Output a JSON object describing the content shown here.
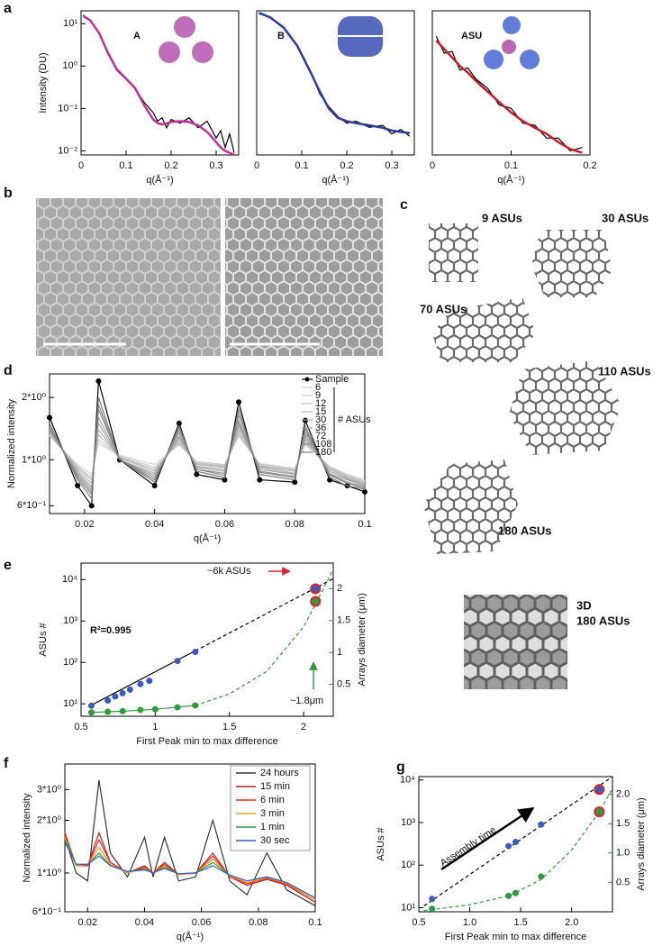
{
  "panels": [
    "a",
    "b",
    "c",
    "d",
    "e",
    "f",
    "g"
  ],
  "structures": [
    "9 ASUs",
    "30 ASUs",
    "70 ASUs",
    "110 ASUs",
    "180 ASUs"
  ],
  "structure_3d": [
    "3D",
    "180 ASUs"
  ],
  "chart_data": [
    {
      "type": "line",
      "title": "A",
      "title_color": "#7b2d8e",
      "xlabel": "q(Å⁻¹)",
      "ylabel": "Intensity (DU)",
      "xlim": [
        0,
        0.35
      ],
      "xticks": [
        0,
        0.1,
        0.2,
        0.3
      ],
      "ylim": [
        0.008,
        20
      ],
      "yscale": "log",
      "yticks": [
        {
          "value": 0.01,
          "label": "10⁻²"
        },
        {
          "value": 0.1,
          "label": "10⁻¹"
        },
        {
          "value": 1,
          "label": "10⁰"
        },
        {
          "value": 10,
          "label": "10¹"
        }
      ],
      "x": [
        0.005,
        0.02,
        0.04,
        0.06,
        0.08,
        0.1,
        0.12,
        0.14,
        0.16,
        0.17,
        0.18,
        0.19,
        0.2,
        0.22,
        0.24,
        0.26,
        0.28,
        0.3,
        0.31,
        0.32,
        0.33,
        0.34
      ],
      "series": [
        {
          "color": "#000000",
          "values": [
            16,
            11.5,
            6.2,
            1.9,
            0.85,
            0.52,
            0.29,
            0.14,
            0.08,
            0.05,
            0.06,
            0.035,
            0.055,
            0.045,
            0.06,
            0.035,
            0.05,
            0.02,
            0.03,
            0.012,
            0.025,
            0.009
          ]
        },
        {
          "color": "#c0309a",
          "width": 2.5,
          "values": [
            15,
            12,
            6,
            2,
            0.8,
            0.5,
            0.3,
            0.12,
            0.055,
            0.045,
            0.042,
            0.044,
            0.048,
            0.05,
            0.048,
            0.04,
            0.028,
            0.016,
            0.012,
            0.01,
            0.009,
            0.008
          ]
        }
      ]
    },
    {
      "type": "line",
      "title": "B",
      "title_color": "#2a3d9c",
      "xlabel": "q(Å⁻¹)",
      "xlim": [
        0,
        0.35
      ],
      "xticks": [
        0,
        0.1,
        0.2,
        0.3
      ],
      "ylim": [
        0.008,
        20
      ],
      "yscale": "log",
      "x": [
        0.005,
        0.03,
        0.06,
        0.09,
        0.12,
        0.14,
        0.16,
        0.18,
        0.2,
        0.22,
        0.25,
        0.28,
        0.3,
        0.32,
        0.34
      ],
      "series": [
        {
          "color": "#000000",
          "values": [
            17,
            14.5,
            7.8,
            3.1,
            0.72,
            0.22,
            0.11,
            0.065,
            0.045,
            0.05,
            0.036,
            0.04,
            0.025,
            0.032,
            0.022
          ]
        },
        {
          "color": "#2a3d9c",
          "width": 2.5,
          "values": [
            18,
            14,
            8,
            3,
            0.7,
            0.25,
            0.1,
            0.06,
            0.05,
            0.045,
            0.04,
            0.035,
            0.03,
            0.028,
            0.026
          ]
        }
      ]
    },
    {
      "type": "line",
      "title": "ASU",
      "title_color": "#c0202a",
      "xlabel": "q(Å⁻¹)",
      "xlim": [
        0,
        0.2
      ],
      "xticks": [
        0,
        0.1,
        0.2
      ],
      "ylim": [
        0.008,
        20
      ],
      "yscale": "log",
      "x": [
        0.005,
        0.015,
        0.025,
        0.035,
        0.045,
        0.055,
        0.07,
        0.085,
        0.1,
        0.115,
        0.13,
        0.145,
        0.16,
        0.175,
        0.19
      ],
      "series": [
        {
          "color": "#000000",
          "values": [
            5,
            2,
            2.2,
            0.8,
            0.9,
            0.5,
            0.3,
            0.12,
            0.1,
            0.045,
            0.04,
            0.02,
            0.02,
            0.01,
            0.012
          ]
        },
        {
          "color": "#c0202a",
          "width": 2.5,
          "values": [
            4,
            2.5,
            1.6,
            1.0,
            0.7,
            0.45,
            0.25,
            0.14,
            0.08,
            0.05,
            0.035,
            0.025,
            0.016,
            0.011,
            0.009
          ]
        }
      ]
    },
    {
      "type": "line",
      "xlabel": "q(Å⁻¹)",
      "ylabel": "Normalized intensity",
      "xlim": [
        0.01,
        0.1
      ],
      "xticks": [
        0.02,
        0.04,
        0.06,
        0.08,
        0.1
      ],
      "ylim": [
        0.55,
        2.6
      ],
      "yscale": "log",
      "yticks": [
        {
          "value": 0.6,
          "label": "6*10⁻¹"
        },
        {
          "value": 1,
          "label": "1*10⁰"
        },
        {
          "value": 2,
          "label": "2*10⁰"
        }
      ],
      "legend": "upper right",
      "legend_title": "# ASUs",
      "x": [
        0.01,
        0.018,
        0.022,
        0.024,
        0.03,
        0.04,
        0.047,
        0.052,
        0.06,
        0.064,
        0.07,
        0.08,
        0.083,
        0.09,
        0.095,
        0.1
      ],
      "series": [
        {
          "name": "Sample",
          "color": "#000000",
          "markers": true,
          "values": [
            1.6,
            0.75,
            0.6,
            2.4,
            1.0,
            0.75,
            1.5,
            0.85,
            0.8,
            1.9,
            0.8,
            0.78,
            1.55,
            0.8,
            0.75,
            0.7
          ]
        },
        {
          "name": "6",
          "color": "#d4d4d4",
          "values": [
            1.3,
            0.95,
            0.85,
            1.2,
            1.05,
            0.95,
            1.18,
            0.98,
            0.95,
            1.3,
            0.96,
            0.91,
            1.18,
            0.93,
            0.85,
            0.8
          ]
        },
        {
          "name": "9",
          "color": "#cacaca",
          "values": [
            1.31,
            0.93,
            0.82,
            1.25,
            1.04,
            0.92,
            1.2,
            0.97,
            0.94,
            1.32,
            0.95,
            0.9,
            1.2,
            0.92,
            0.84,
            0.79
          ]
        },
        {
          "name": "12",
          "color": "#c0c0c0",
          "values": [
            1.33,
            0.92,
            0.8,
            1.32,
            1.03,
            0.9,
            1.22,
            0.96,
            0.93,
            1.35,
            0.94,
            0.89,
            1.22,
            0.91,
            0.83,
            0.78
          ]
        },
        {
          "name": "15",
          "color": "#b5b5b5",
          "values": [
            1.35,
            0.9,
            0.77,
            1.4,
            1.02,
            0.88,
            1.25,
            0.95,
            0.92,
            1.4,
            0.93,
            0.88,
            1.25,
            0.9,
            0.82,
            0.77
          ]
        },
        {
          "name": "30",
          "color": "#aaaaaa",
          "values": [
            1.38,
            0.88,
            0.74,
            1.5,
            1.0,
            0.86,
            1.28,
            0.93,
            0.9,
            1.45,
            0.92,
            0.86,
            1.28,
            0.88,
            0.81,
            0.76
          ]
        },
        {
          "name": "36",
          "color": "#9f9f9f",
          "values": [
            1.4,
            0.86,
            0.72,
            1.6,
            1.0,
            0.84,
            1.3,
            0.92,
            0.88,
            1.5,
            0.9,
            0.85,
            1.3,
            0.86,
            0.8,
            0.75
          ]
        },
        {
          "name": "72",
          "color": "#939393",
          "values": [
            1.42,
            0.84,
            0.7,
            1.75,
            1.0,
            0.82,
            1.35,
            0.9,
            0.86,
            1.55,
            0.88,
            0.83,
            1.35,
            0.85,
            0.78,
            0.74
          ]
        },
        {
          "name": "108",
          "color": "#888888",
          "values": [
            1.45,
            0.82,
            0.68,
            1.85,
            1.0,
            0.8,
            1.4,
            0.9,
            0.84,
            1.65,
            0.87,
            0.82,
            1.4,
            0.84,
            0.77,
            0.73
          ]
        },
        {
          "name": "180",
          "color": "#7c7c7c",
          "values": [
            1.5,
            0.8,
            0.65,
            2.0,
            1.0,
            0.78,
            1.45,
            0.88,
            0.82,
            1.75,
            0.85,
            0.8,
            1.45,
            0.82,
            0.75,
            0.72
          ]
        }
      ]
    },
    {
      "type": "scatter",
      "xlabel": "First Peak min to max difference",
      "ylabel": "ASUs #",
      "y2label": "Arrays diameter (μm)",
      "y2color": "#2e9a3a",
      "xlim": [
        0.5,
        2.2
      ],
      "xticks": [
        0.5,
        1,
        1.5,
        2
      ],
      "ylim": [
        5,
        25000
      ],
      "yscale": "log",
      "yticks": [
        {
          "value": 10,
          "label": "10¹"
        },
        {
          "value": 100,
          "label": "10²"
        },
        {
          "value": 1000,
          "label": "10³"
        },
        {
          "value": 10000,
          "label": "10⁴"
        }
      ],
      "y2lim": [
        0,
        2.4
      ],
      "y2ticks": [
        0.5,
        1,
        1.5,
        2
      ],
      "series": [
        {
          "kind": "line",
          "color": "#000000",
          "x": [
            0.55,
            1.27
          ],
          "values": [
            8.5,
            190
          ]
        },
        {
          "kind": "line",
          "dash": true,
          "color": "#000000",
          "x": [
            1.27,
            2.2
          ],
          "values": [
            190,
            10500
          ]
        },
        {
          "kind": "line",
          "axis": "y2",
          "color": "#2e9a3a",
          "x": [
            0.55,
            0.8,
            1.0,
            1.27
          ],
          "values": [
            0.06,
            0.08,
            0.11,
            0.17
          ]
        },
        {
          "kind": "line",
          "axis": "y2",
          "dash": true,
          "color": "#2e9a3a",
          "x": [
            1.27,
            1.5,
            1.75,
            2.0,
            2.2
          ],
          "values": [
            0.17,
            0.35,
            0.7,
            1.4,
            2.3
          ]
        },
        {
          "color": "#3a5bbf",
          "x": [
            0.57,
            0.68,
            0.73,
            0.78,
            0.83,
            0.9,
            0.96,
            1.15,
            1.27
          ],
          "values": [
            9,
            12,
            15,
            18,
            22,
            30,
            36,
            108,
            180
          ]
        },
        {
          "axis": "y2",
          "color": "#2e9a3a",
          "x": [
            0.57,
            0.68,
            0.78,
            0.9,
            1.0,
            1.15,
            1.27
          ],
          "values": [
            0.06,
            0.07,
            0.08,
            0.1,
            0.11,
            0.14,
            0.17
          ]
        },
        {
          "color": "#3a5bbf",
          "edgecolor": "#e0202a",
          "x": [
            2.08
          ],
          "values": [
            6000
          ]
        },
        {
          "axis": "y2",
          "color": "#2e9a3a",
          "edgecolor": "#e0202a",
          "x": [
            2.08
          ],
          "values": [
            1.8
          ]
        }
      ],
      "annotations": [
        {
          "text": "R²=0.995",
          "color": "#000000"
        },
        {
          "text": "~6k ASUs",
          "color": "#e0202a"
        },
        {
          "text": "~1.8μm",
          "color": "#2e9a3a"
        }
      ]
    },
    {
      "type": "line",
      "xlabel": "q(Å⁻¹)",
      "ylabel": "Normalized intensity",
      "xlim": [
        0.012,
        0.1
      ],
      "xticks": [
        0.02,
        0.04,
        0.06,
        0.08,
        0.1
      ],
      "ylim": [
        0.6,
        4.2
      ],
      "yscale": "log",
      "yticks": [
        {
          "value": 0.6,
          "label": "6*10⁻¹"
        },
        {
          "value": 1,
          "label": "1*10⁰"
        },
        {
          "value": 2,
          "label": "2*10⁰"
        },
        {
          "value": 3,
          "label": "3*10⁰"
        }
      ],
      "legend": "upper right",
      "x": [
        0.012,
        0.016,
        0.02,
        0.024,
        0.028,
        0.034,
        0.04,
        0.043,
        0.047,
        0.052,
        0.058,
        0.064,
        0.07,
        0.076,
        0.083,
        0.09,
        0.1
      ],
      "series": [
        {
          "name": "24 hours",
          "color": "#333333",
          "values": [
            1.6,
            1.0,
            0.9,
            3.4,
            1.3,
            0.95,
            1.6,
            0.95,
            1.6,
            0.9,
            0.95,
            2.0,
            0.9,
            0.75,
            1.3,
            0.8,
            0.65
          ]
        },
        {
          "name": "15 min",
          "color": "#b22222",
          "values": [
            1.7,
            1.1,
            1.1,
            1.7,
            1.15,
            1.0,
            1.1,
            1.0,
            1.15,
            0.98,
            1.0,
            1.3,
            0.95,
            0.85,
            0.92,
            0.85,
            0.68
          ]
        },
        {
          "name": "6 min",
          "color": "#ff2020",
          "values": [
            1.65,
            1.1,
            1.1,
            1.55,
            1.15,
            1.0,
            1.08,
            1.0,
            1.12,
            0.98,
            1.0,
            1.25,
            0.95,
            0.87,
            0.93,
            0.86,
            0.7
          ]
        },
        {
          "name": "3 min",
          "color": "#e8a020",
          "values": [
            1.6,
            1.1,
            1.12,
            1.4,
            1.12,
            1.0,
            1.06,
            1.0,
            1.1,
            0.98,
            1.0,
            1.2,
            0.96,
            0.88,
            0.94,
            0.87,
            0.7
          ]
        },
        {
          "name": "1 min",
          "color": "#2e9a3a",
          "values": [
            1.55,
            1.12,
            1.12,
            1.3,
            1.1,
            1.02,
            1.05,
            1.0,
            1.08,
            0.99,
            1.0,
            1.15,
            0.97,
            0.9,
            0.95,
            0.88,
            0.72
          ]
        },
        {
          "name": "30 sec",
          "color": "#3a5bbf",
          "values": [
            1.5,
            1.12,
            1.12,
            1.25,
            1.1,
            1.02,
            1.04,
            1.0,
            1.06,
            0.99,
            1.0,
            1.1,
            0.97,
            0.9,
            0.95,
            0.88,
            0.72
          ]
        }
      ]
    },
    {
      "type": "scatter",
      "xlabel": "First Peak min to max difference",
      "ylabel": "ASUs #",
      "y2label": "Arrays diameter (μm)",
      "y2color": "#2e9a3a",
      "xlim": [
        0.5,
        2.4
      ],
      "xticks": [
        0.5,
        {
          "value": 1,
          "label": "1.0"
        },
        1.5,
        {
          "value": 2,
          "label": "2.0"
        }
      ],
      "ylim": [
        8,
        12000
      ],
      "yscale": "log",
      "yticks": [
        {
          "value": 10,
          "label": "10¹"
        },
        {
          "value": 100,
          "label": "10²"
        },
        {
          "value": 1000,
          "label": "10³"
        },
        {
          "value": 10000,
          "label": "10⁴"
        }
      ],
      "y2lim": [
        0,
        2.3
      ],
      "y2ticks": [
        0.5,
        {
          "value": 1,
          "label": "1.0"
        },
        1.5,
        {
          "value": 2,
          "label": "2.0"
        }
      ],
      "series": [
        {
          "kind": "line",
          "dash": true,
          "color": "#000000",
          "x": [
            0.55,
            2.4
          ],
          "values": [
            11,
            12000
          ]
        },
        {
          "kind": "line",
          "axis": "y2",
          "dash": true,
          "color": "#2e9a3a",
          "x": [
            0.55,
            1.0,
            1.4,
            1.7,
            2.0,
            2.27,
            2.4
          ],
          "values": [
            0.02,
            0.12,
            0.28,
            0.55,
            1.05,
            1.7,
            2.1
          ]
        },
        {
          "color": "#3a5bbf",
          "x": [
            0.63,
            1.38,
            1.45,
            1.7
          ],
          "values": [
            16,
            280,
            350,
            900
          ]
        },
        {
          "axis": "y2",
          "color": "#2e9a3a",
          "x": [
            0.63,
            1.38,
            1.45,
            1.7
          ],
          "values": [
            0.05,
            0.27,
            0.32,
            0.6
          ]
        },
        {
          "color": "#3a5bbf",
          "edgecolor": "#e0202a",
          "x": [
            2.27
          ],
          "values": [
            6000
          ]
        },
        {
          "axis": "y2",
          "color": "#2e9a3a",
          "edgecolor": "#e0202a",
          "x": [
            2.27
          ],
          "values": [
            1.7
          ]
        }
      ],
      "annotations": [
        {
          "text": "Assembly time",
          "color": "#000000"
        }
      ]
    }
  ]
}
